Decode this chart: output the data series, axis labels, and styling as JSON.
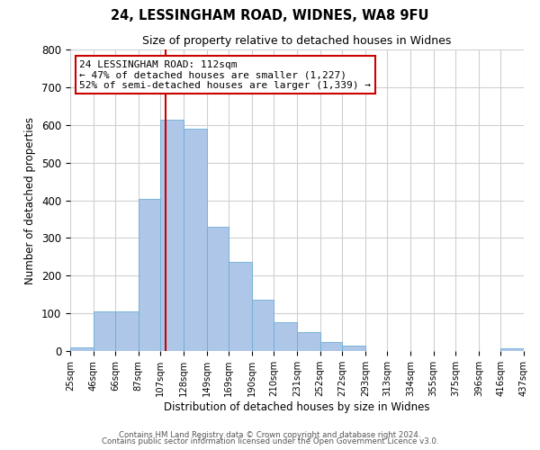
{
  "title1": "24, LESSINGHAM ROAD, WIDNES, WA8 9FU",
  "title2": "Size of property relative to detached houses in Widnes",
  "xlabel": "Distribution of detached houses by size in Widnes",
  "ylabel": "Number of detached properties",
  "bin_labels": [
    "25sqm",
    "46sqm",
    "66sqm",
    "87sqm",
    "107sqm",
    "128sqm",
    "149sqm",
    "169sqm",
    "190sqm",
    "210sqm",
    "231sqm",
    "252sqm",
    "272sqm",
    "293sqm",
    "313sqm",
    "334sqm",
    "355sqm",
    "375sqm",
    "396sqm",
    "416sqm",
    "437sqm"
  ],
  "bin_edges": [
    25,
    46,
    66,
    87,
    107,
    128,
    149,
    169,
    190,
    210,
    231,
    252,
    272,
    293,
    313,
    334,
    355,
    375,
    396,
    416,
    437
  ],
  "bar_heights": [
    10,
    106,
    106,
    403,
    614,
    591,
    330,
    237,
    136,
    76,
    49,
    24,
    15,
    0,
    0,
    0,
    0,
    0,
    0,
    8,
    0
  ],
  "bar_color": "#aec6e8",
  "bar_edgecolor": "#6baed6",
  "property_size": 112,
  "vline_color": "#cc0000",
  "annotation_text_line1": "24 LESSINGHAM ROAD: 112sqm",
  "annotation_text_line2": "← 47% of detached houses are smaller (1,227)",
  "annotation_text_line3": "52% of semi-detached houses are larger (1,339) →",
  "annotation_box_edgecolor": "#cc0000",
  "ylim": [
    0,
    800
  ],
  "yticks": [
    0,
    100,
    200,
    300,
    400,
    500,
    600,
    700,
    800
  ],
  "footer1": "Contains HM Land Registry data © Crown copyright and database right 2024.",
  "footer2": "Contains public sector information licensed under the Open Government Licence v3.0.",
  "background_color": "#ffffff",
  "grid_color": "#d0d0d0"
}
